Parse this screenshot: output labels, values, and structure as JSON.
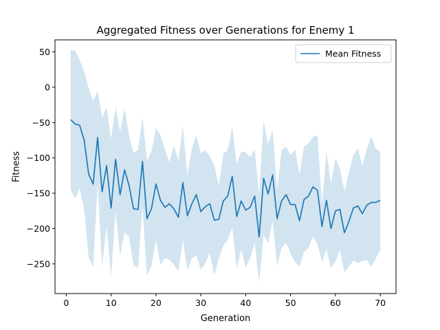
{
  "chart_data": {
    "type": "line",
    "title": "Aggregated Fitness over Generations for Enemy 1",
    "xlabel": "Generation",
    "ylabel": "Fitness",
    "xlim": [
      -2.5,
      73.5
    ],
    "ylim": [
      -292,
      67
    ],
    "xticks": [
      0,
      10,
      20,
      30,
      40,
      50,
      60,
      70
    ],
    "yticks": [
      -250,
      -200,
      -150,
      -100,
      -50,
      0,
      50
    ],
    "grid": false,
    "legend_position": "top-right",
    "colors": {
      "line": "#1f77b4",
      "band": "#1f77b4"
    },
    "series": [
      {
        "name": "Mean Fitness",
        "x": [
          1,
          2,
          3,
          4,
          5,
          6,
          7,
          8,
          9,
          10,
          11,
          12,
          13,
          14,
          15,
          16,
          17,
          18,
          19,
          20,
          21,
          22,
          23,
          24,
          25,
          26,
          27,
          28,
          29,
          30,
          31,
          32,
          33,
          34,
          35,
          36,
          37,
          38,
          39,
          40,
          41,
          42,
          43,
          44,
          45,
          46,
          47,
          48,
          49,
          50,
          51,
          52,
          53,
          54,
          55,
          56,
          57,
          58,
          59,
          60,
          61,
          62,
          63,
          64,
          65,
          66,
          67,
          68,
          69,
          70
        ],
        "values": [
          -46,
          -52,
          -54,
          -75,
          -123,
          -137,
          -71,
          -148,
          -111,
          -171,
          -102,
          -152,
          -117,
          -139,
          -172,
          -173,
          -105,
          -186,
          -172,
          -137,
          -160,
          -170,
          -165,
          -172,
          -184,
          -135,
          -182,
          -165,
          -152,
          -176,
          -169,
          -165,
          -188,
          -187,
          -161,
          -154,
          -126,
          -183,
          -161,
          -174,
          -170,
          -154,
          -212,
          -129,
          -151,
          -124,
          -186,
          -161,
          -152,
          -166,
          -166,
          -189,
          -159,
          -154,
          -141,
          -146,
          -197,
          -160,
          -200,
          -175,
          -173,
          -206,
          -190,
          -171,
          -168,
          -179,
          -167,
          -163,
          -163,
          -160
        ],
        "upper": [
          53,
          52,
          38,
          23,
          -1,
          -20,
          -5,
          -43,
          -28,
          -73,
          -28,
          -63,
          -29,
          -68,
          -93,
          -89,
          -42,
          -104,
          -91,
          -58,
          -68,
          -88,
          -106,
          -83,
          -104,
          -55,
          -124,
          -87,
          -68,
          -94,
          -89,
          -98,
          -110,
          -140,
          -94,
          -89,
          -56,
          -109,
          -91,
          -92,
          -99,
          -88,
          -153,
          -48,
          -81,
          -60,
          -145,
          -89,
          -84,
          -96,
          -88,
          -124,
          -84,
          -79,
          -70,
          -68,
          -165,
          -91,
          -136,
          -101,
          -115,
          -147,
          -121,
          -96,
          -86,
          -111,
          -87,
          -70,
          -87,
          -91
        ],
        "lower": [
          -145,
          -157,
          -143,
          -173,
          -241,
          -255,
          -136,
          -254,
          -197,
          -268,
          -176,
          -239,
          -205,
          -212,
          -252,
          -256,
          -169,
          -267,
          -253,
          -216,
          -251,
          -242,
          -244,
          -251,
          -261,
          -216,
          -259,
          -242,
          -238,
          -258,
          -249,
          -234,
          -267,
          -242,
          -225,
          -216,
          -198,
          -257,
          -230,
          -255,
          -242,
          -221,
          -276,
          -209,
          -221,
          -189,
          -252,
          -228,
          -220,
          -236,
          -247,
          -254,
          -233,
          -228,
          -212,
          -222,
          -247,
          -229,
          -256,
          -247,
          -231,
          -262,
          -254,
          -245,
          -249,
          -246,
          -245,
          -254,
          -242,
          -230
        ]
      }
    ]
  }
}
